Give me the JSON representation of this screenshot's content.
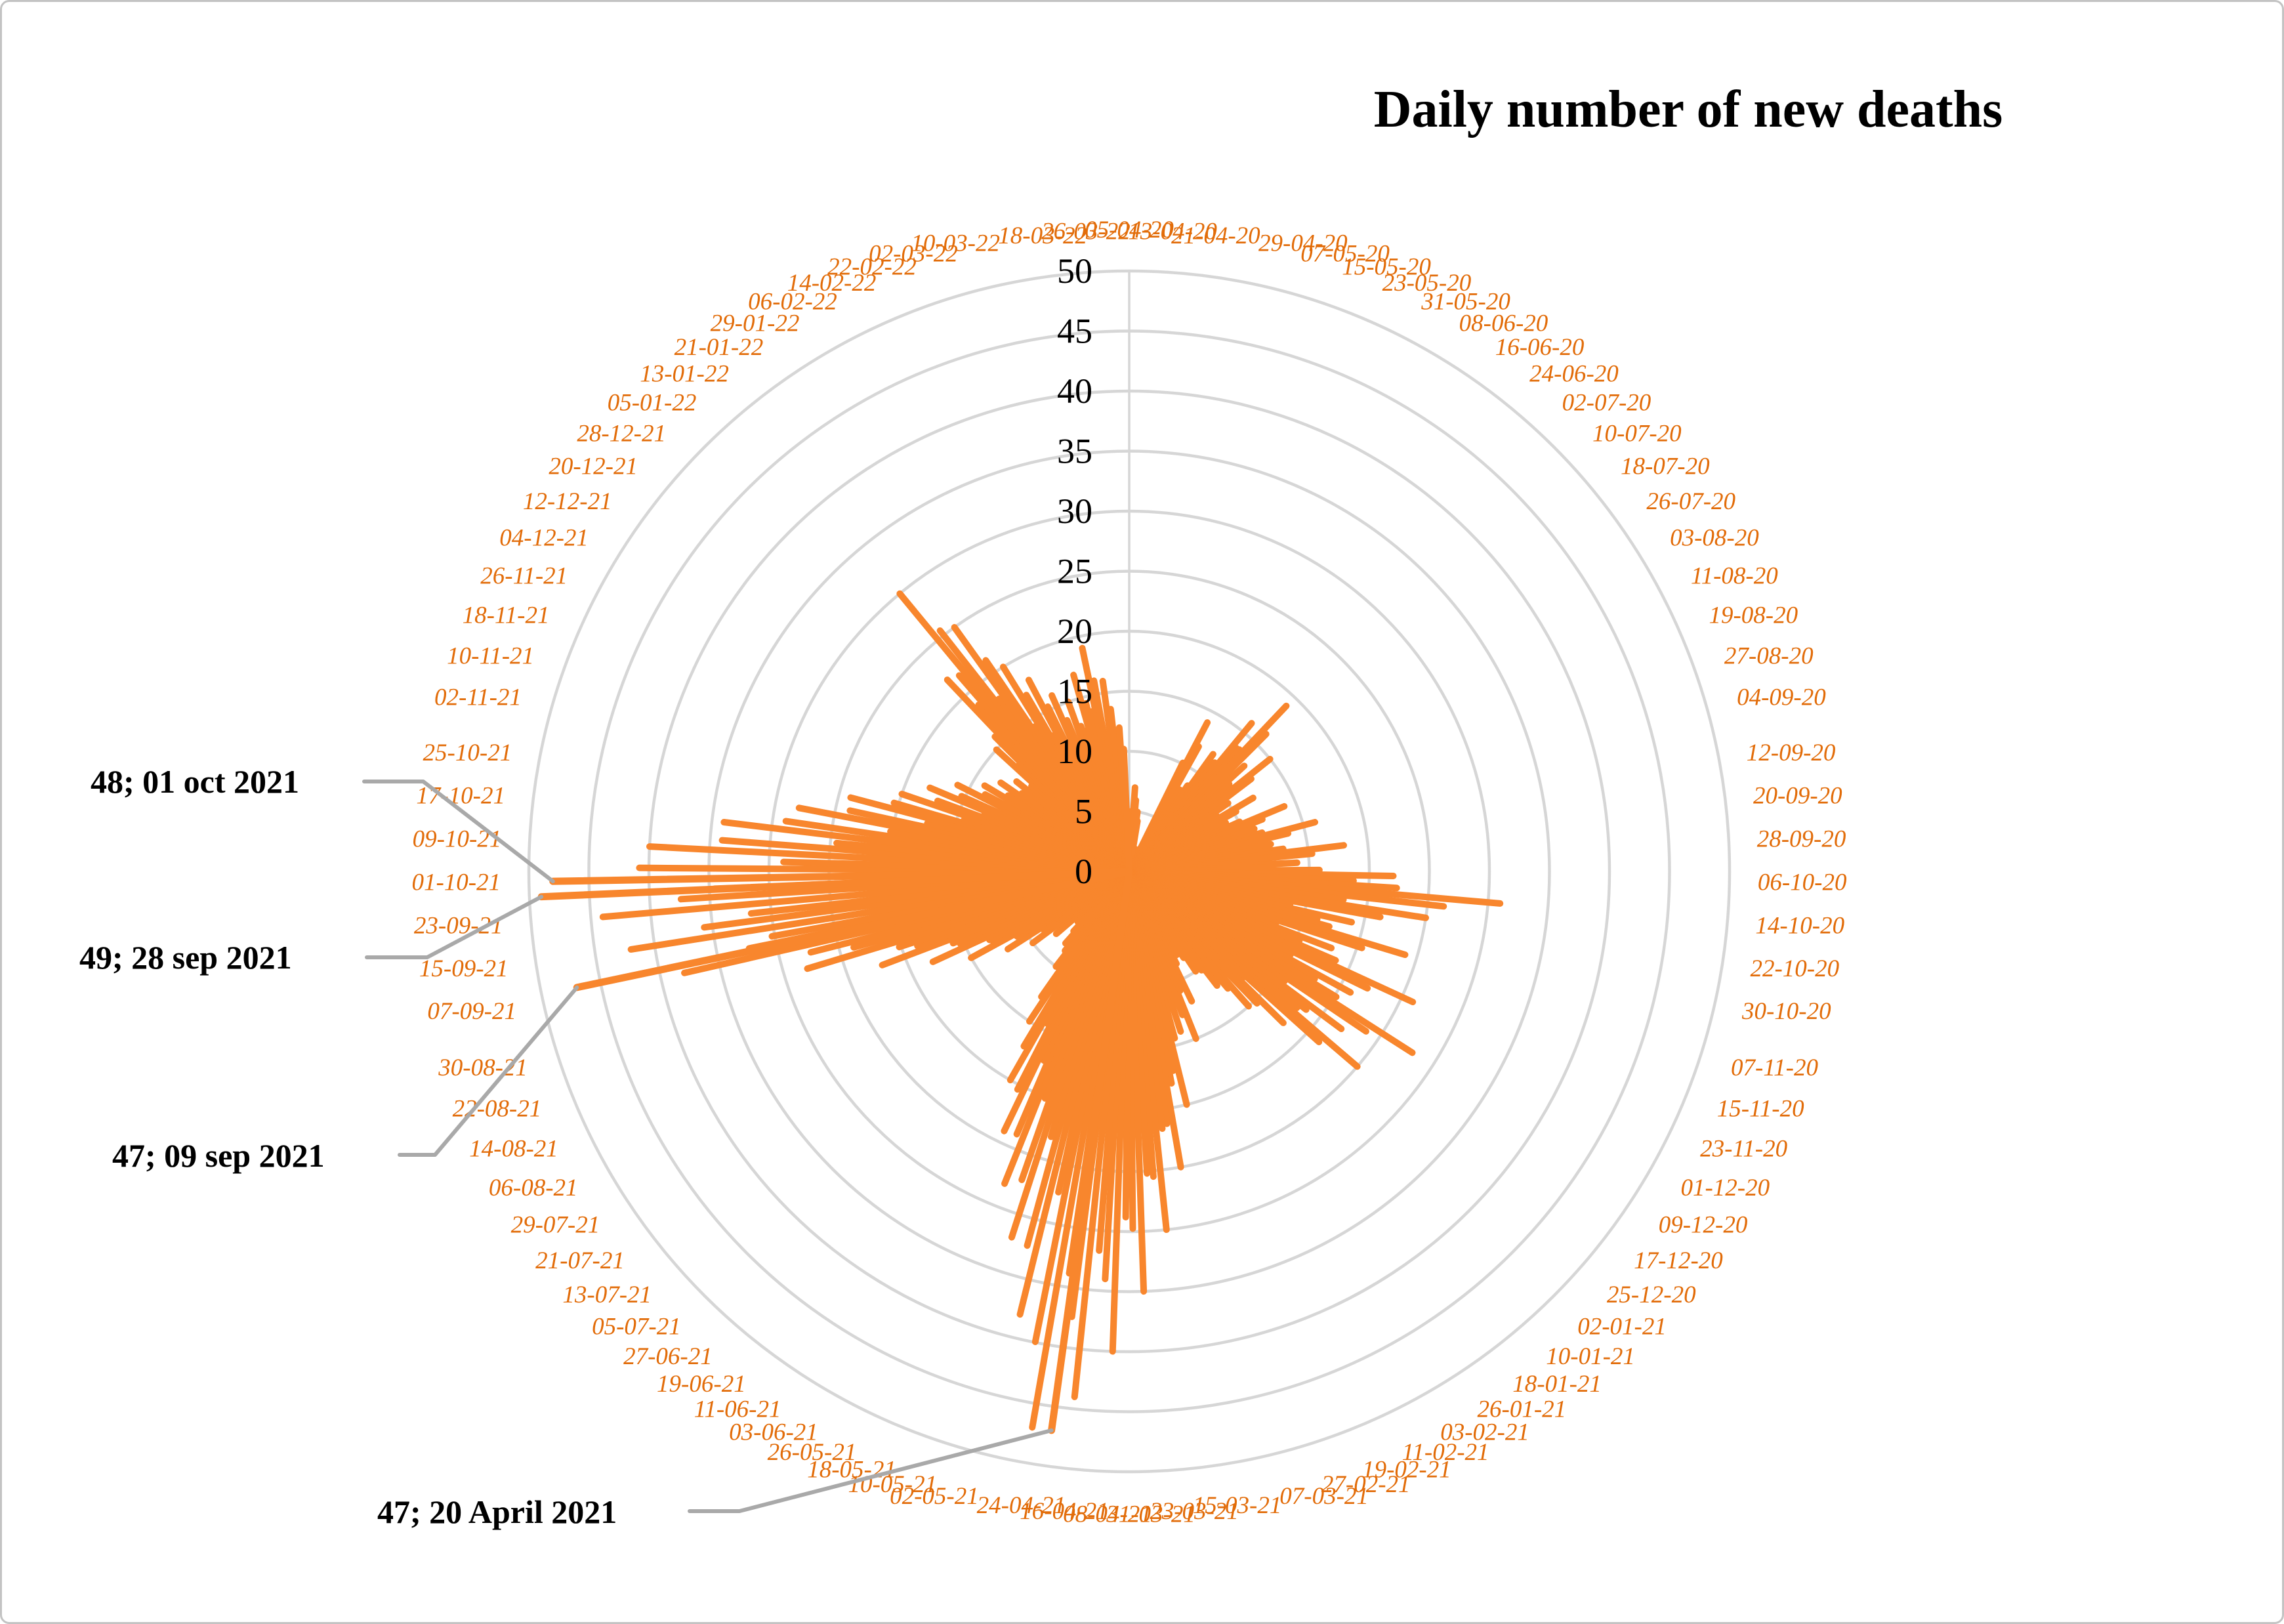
{
  "title": "Daily number of new deaths",
  "chart_data": {
    "type": "bar",
    "subtype": "polar-radial-spikes",
    "title": "Daily number of new deaths",
    "direction": "clockwise",
    "start_position": "top",
    "period_days": 728,
    "category_interval_days": 8,
    "grid": true,
    "legend": "none",
    "radial_axis": {
      "min": 0,
      "max": 50,
      "step": 5,
      "tick_labels": [
        "0",
        "5",
        "10",
        "15",
        "20",
        "25",
        "30",
        "35",
        "40",
        "45",
        "50"
      ]
    },
    "categories": [
      "05-04-20",
      "13-04-20",
      "21-04-20",
      "29-04-20",
      "07-05-20",
      "15-05-20",
      "23-05-20",
      "31-05-20",
      "08-06-20",
      "16-06-20",
      "24-06-20",
      "02-07-20",
      "10-07-20",
      "18-07-20",
      "26-07-20",
      "03-08-20",
      "11-08-20",
      "19-08-20",
      "27-08-20",
      "04-09-20",
      "12-09-20",
      "20-09-20",
      "28-09-20",
      "06-10-20",
      "14-10-20",
      "22-10-20",
      "30-10-20",
      "07-11-20",
      "15-11-20",
      "23-11-20",
      "01-12-20",
      "09-12-20",
      "17-12-20",
      "25-12-20",
      "02-01-21",
      "10-01-21",
      "18-01-21",
      "26-01-21",
      "03-02-21",
      "11-02-21",
      "19-02-21",
      "27-02-21",
      "07-03-21",
      "15-03-21",
      "23-03-21",
      "31-03-21",
      "08-04-21",
      "16-04-21",
      "24-04-21",
      "02-05-21",
      "10-05-21",
      "18-05-21",
      "26-05-21",
      "03-06-21",
      "11-06-21",
      "19-06-21",
      "27-06-21",
      "05-07-21",
      "13-07-21",
      "21-07-21",
      "29-07-21",
      "06-08-21",
      "14-08-21",
      "22-08-21",
      "30-08-21",
      "07-09-21",
      "15-09-21",
      "23-09-21",
      "01-10-21",
      "09-10-21",
      "17-10-21",
      "25-10-21",
      "02-11-21",
      "10-11-21",
      "18-11-21",
      "26-11-21",
      "04-12-21",
      "12-12-21",
      "20-12-21",
      "28-12-21",
      "05-01-22",
      "13-01-22",
      "21-01-22",
      "29-01-22",
      "06-02-22",
      "14-02-22",
      "22-02-22",
      "02-03-22",
      "10-03-22",
      "18-03-22",
      "26-03-22"
    ],
    "values_note": "daily series sampled at the 8-day labeled dates; estimated from plot pixels",
    "values": [
      3,
      7,
      5,
      2,
      1,
      1,
      2,
      14,
      8,
      12,
      16,
      19,
      13,
      15,
      10,
      12,
      9,
      14,
      11,
      16,
      12,
      18,
      14,
      22,
      31,
      25,
      19,
      24,
      18,
      26,
      21,
      28,
      22,
      25,
      18,
      15,
      12,
      10,
      8,
      12,
      15,
      14,
      20,
      25,
      30,
      35,
      40,
      44,
      47,
      38,
      32,
      28,
      24,
      20,
      15,
      10,
      8,
      6,
      8,
      10,
      12,
      15,
      18,
      22,
      28,
      38,
      42,
      44,
      48,
      40,
      34,
      28,
      24,
      20,
      18,
      16,
      14,
      13,
      12,
      15,
      22,
      30,
      25,
      20,
      18,
      16,
      15,
      17,
      19,
      16,
      12
    ],
    "annotations": [
      {
        "label": "48; 01 oct 2021",
        "value": 48,
        "date": "01-10-2021",
        "day_index": 544
      },
      {
        "label": "49; 28 sep 2021",
        "value": 49,
        "date": "28-09-2021",
        "day_index": 541
      },
      {
        "label": "47; 09 sep 2021",
        "value": 47,
        "date": "09-09-2021",
        "day_index": 522
      },
      {
        "label": "47; 20 April 2021",
        "value": 47,
        "date": "20-04-2021",
        "day_index": 380
      }
    ],
    "colors": {
      "spike": "#F8862D",
      "date_label": "#E26C09",
      "gridline": "#D6D6D6",
      "tick_label": "#000000",
      "leader_line": "#A9A9A9",
      "annotation_text": "#000000",
      "background": "#FFFFFF",
      "border": "#C3C3C3"
    },
    "layout_hints": {
      "center": [
        1718,
        1325
      ],
      "outer_radius": 915,
      "title_pos": [
        2570,
        190
      ],
      "category_label_radius": 958,
      "annotation_text_pos": [
        [
          135,
          1205
        ],
        [
          118,
          1473
        ],
        [
          168,
          1775
        ],
        [
          572,
          2318
        ]
      ],
      "annotation_leader_stubs": [
        [
          [
            552,
            1188
          ],
          [
            642,
            1188
          ]
        ],
        [
          [
            556,
            1456
          ],
          [
            648,
            1456
          ]
        ],
        [
          [
            606,
            1757
          ],
          [
            660,
            1757
          ]
        ],
        [
          [
            1048,
            2300
          ],
          [
            1124,
            2300
          ]
        ]
      ]
    }
  }
}
